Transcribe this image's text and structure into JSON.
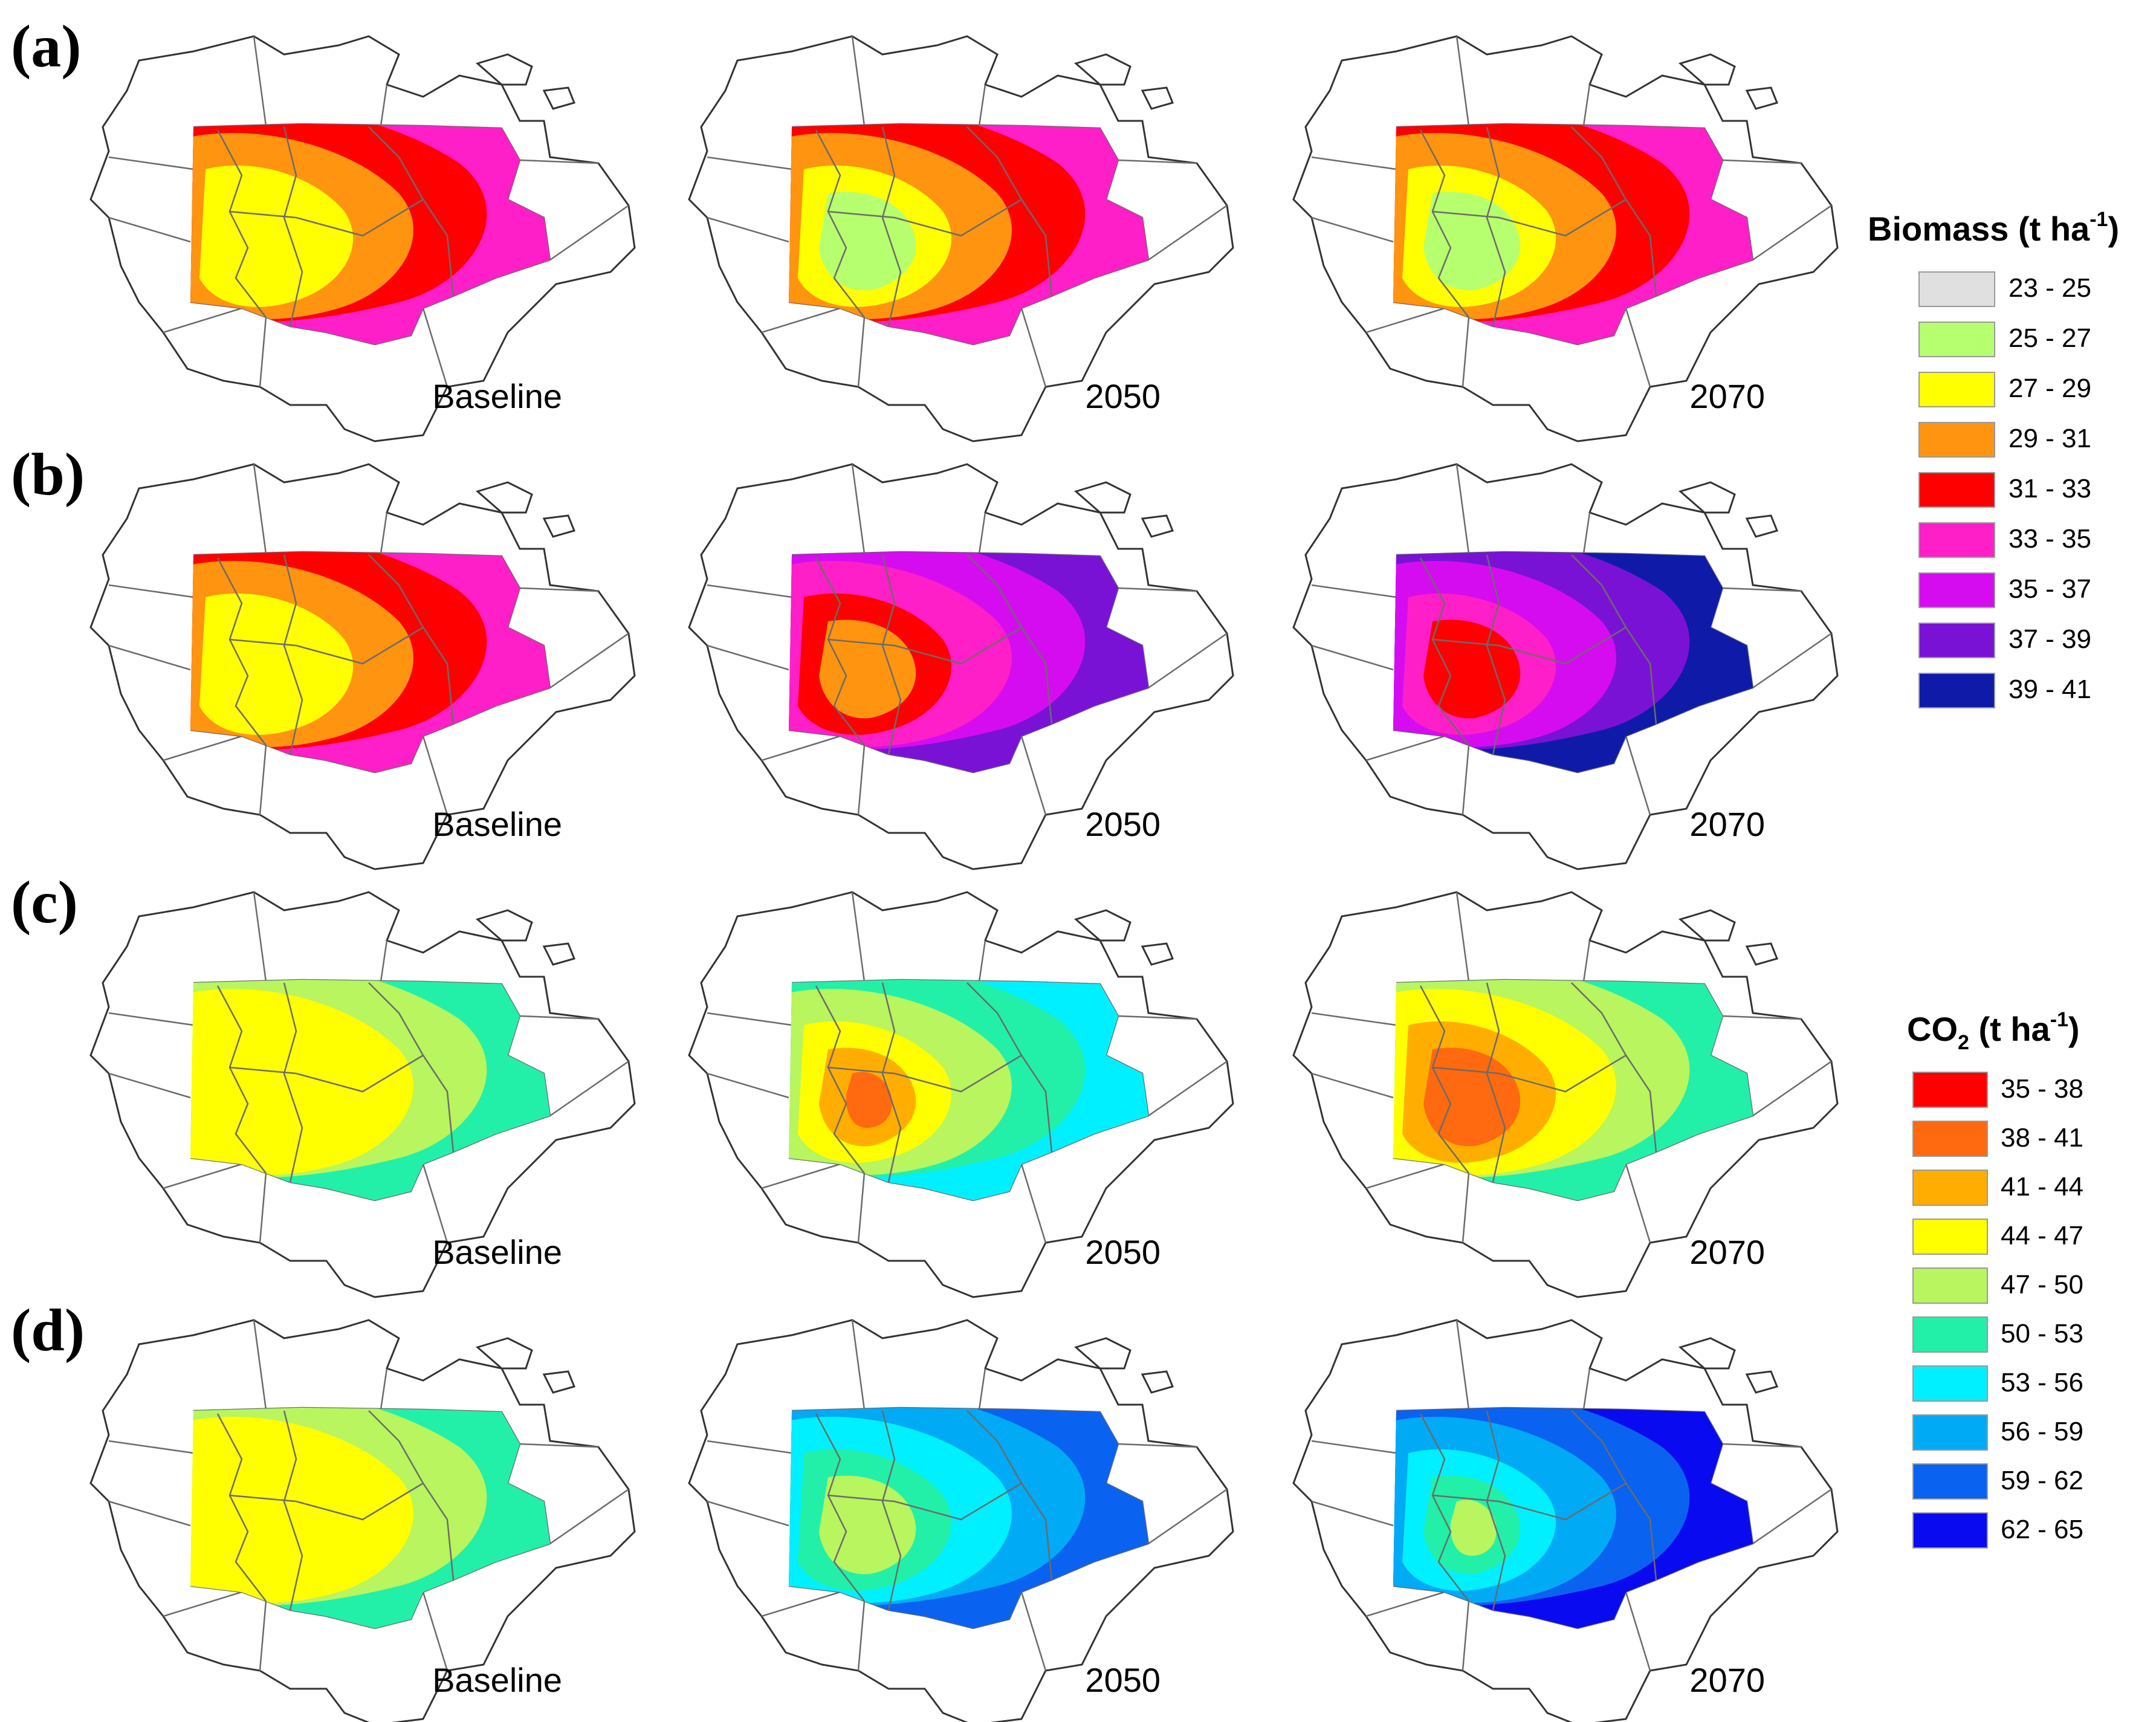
{
  "row_labels": [
    "(a)",
    "(b)",
    "(c)",
    "(d)"
  ],
  "period_labels": [
    "Baseline",
    "2050",
    "2070"
  ],
  "biomass_legend": {
    "title_main": "Biomass (t ha",
    "title_sup": "-1",
    "title_end": ")",
    "classes": [
      {
        "label": "23 - 25",
        "color": "#e0e0e0"
      },
      {
        "label": "25 - 27",
        "color": "#b6ff6e"
      },
      {
        "label": "27 - 29",
        "color": "#ffff00"
      },
      {
        "label": "29 - 31",
        "color": "#ff9410"
      },
      {
        "label": "31 - 33",
        "color": "#ff0000"
      },
      {
        "label": "33 - 35",
        "color": "#ff1fc8"
      },
      {
        "label": "35 - 37",
        "color": "#d60cf0"
      },
      {
        "label": "37 - 39",
        "color": "#7a12d6"
      },
      {
        "label": "39 - 41",
        "color": "#0f1ba8"
      }
    ]
  },
  "co2_legend": {
    "title_main": "CO",
    "title_sub": "2",
    "title_rest": " (t ha",
    "title_sup": "-1",
    "title_end": ")",
    "classes": [
      {
        "label": "35 - 38",
        "color": "#ff0000"
      },
      {
        "label": "38 - 41",
        "color": "#ff6a10"
      },
      {
        "label": "41 - 44",
        "color": "#ffae00"
      },
      {
        "label": "44 - 47",
        "color": "#ffff00"
      },
      {
        "label": "47 - 50",
        "color": "#b8f55e"
      },
      {
        "label": "50 - 53",
        "color": "#22f0a8"
      },
      {
        "label": "53 - 56",
        "color": "#00f0ff"
      },
      {
        "label": "56 - 59",
        "color": "#00aaf5"
      },
      {
        "label": "59 - 62",
        "color": "#0a62f0"
      },
      {
        "label": "62 - 65",
        "color": "#0a0af0"
      }
    ]
  },
  "maps": [
    [
      {
        "bg": "#ff1fc8",
        "bands": [
          "#ff0000",
          "#ff9410",
          "#ffff00"
        ]
      },
      {
        "bg": "#ff1fc8",
        "bands": [
          "#ff0000",
          "#ff9410",
          "#ffff00",
          "#b6ff6e"
        ]
      },
      {
        "bg": "#ff1fc8",
        "bands": [
          "#ff0000",
          "#ff9410",
          "#ffff00",
          "#b6ff6e"
        ]
      }
    ],
    [
      {
        "bg": "#ff1fc8",
        "bands": [
          "#ff0000",
          "#ff9410",
          "#ffff00"
        ]
      },
      {
        "bg": "#7a12d6",
        "bands": [
          "#d60cf0",
          "#ff1fc8",
          "#ff0000",
          "#ff9410"
        ]
      },
      {
        "bg": "#0f1ba8",
        "bands": [
          "#7a12d6",
          "#d60cf0",
          "#ff1fc8",
          "#ff0000"
        ]
      }
    ],
    [
      {
        "bg": "#22f0a8",
        "bands": [
          "#b8f55e",
          "#ffff00"
        ]
      },
      {
        "bg": "#00f0ff",
        "bands": [
          "#22f0a8",
          "#b8f55e",
          "#ffff00",
          "#ffae00",
          "#ff6a10"
        ]
      },
      {
        "bg": "#22f0a8",
        "bands": [
          "#b8f55e",
          "#ffff00",
          "#ffae00",
          "#ff6a10"
        ]
      }
    ],
    [
      {
        "bg": "#22f0a8",
        "bands": [
          "#b8f55e",
          "#ffff00"
        ]
      },
      {
        "bg": "#0a62f0",
        "bands": [
          "#00aaf5",
          "#00f0ff",
          "#22f0a8",
          "#b8f55e"
        ]
      },
      {
        "bg": "#0a0af0",
        "bands": [
          "#0a62f0",
          "#00aaf5",
          "#00f0ff",
          "#22f0a8",
          "#b8f55e"
        ]
      }
    ]
  ]
}
